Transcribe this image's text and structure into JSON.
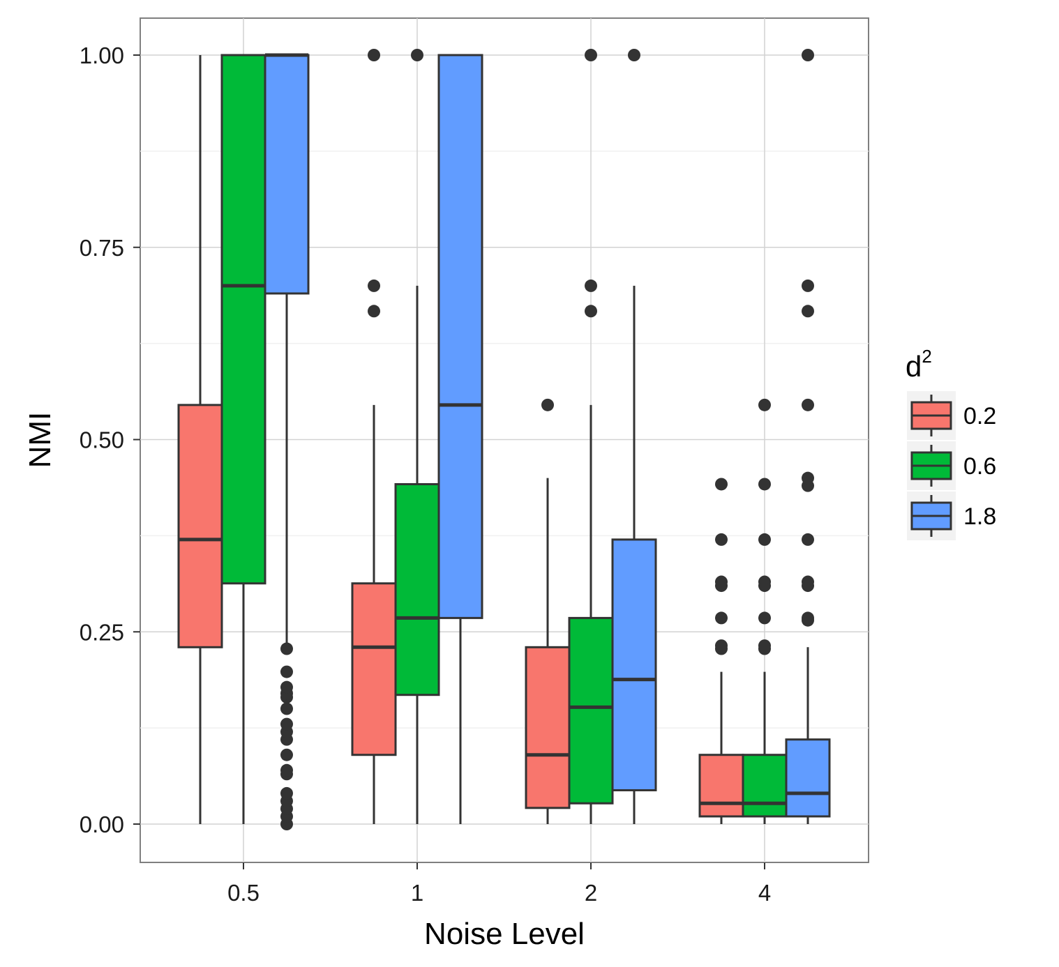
{
  "chart_data": {
    "type": "boxplot",
    "title": "",
    "xlabel": "Noise Level",
    "ylabel": "NMI",
    "ylim": [
      -0.04,
      1.05
    ],
    "y_ticks": [
      "0.00",
      "0.25",
      "0.50",
      "0.75",
      "1.00"
    ],
    "categories": [
      "0.5",
      "1",
      "2",
      "4"
    ],
    "legend": {
      "title": "d",
      "title_superscript": "2",
      "position": "right"
    },
    "series": [
      {
        "name": "0.2",
        "color": "#F8766D",
        "boxes": [
          {
            "category": "0.5",
            "whisker_low": 0.0,
            "q1": 0.23,
            "median": 0.37,
            "q3": 0.545,
            "whisker_high": 1.0,
            "outliers": []
          },
          {
            "category": "1",
            "whisker_low": 0.0,
            "q1": 0.09,
            "median": 0.23,
            "q3": 0.313,
            "whisker_high": 0.545,
            "outliers": [
              0.667,
              0.7,
              1.0
            ]
          },
          {
            "category": "2",
            "whisker_low": 0.0,
            "q1": 0.021,
            "median": 0.09,
            "q3": 0.23,
            "whisker_high": 0.45,
            "outliers": [
              0.545
            ]
          },
          {
            "category": "4",
            "whisker_low": 0.0,
            "q1": 0.01,
            "median": 0.027,
            "q3": 0.09,
            "whisker_high": 0.198,
            "outliers": [
              0.228,
              0.232,
              0.268,
              0.31,
              0.315,
              0.37,
              0.442
            ]
          }
        ]
      },
      {
        "name": "0.6",
        "color": "#00BA38",
        "boxes": [
          {
            "category": "0.5",
            "whisker_low": 0.0,
            "q1": 0.313,
            "median": 0.7,
            "q3": 1.0,
            "whisker_high": 1.0,
            "outliers": []
          },
          {
            "category": "1",
            "whisker_low": 0.0,
            "q1": 0.168,
            "median": 0.268,
            "q3": 0.442,
            "whisker_high": 0.7,
            "outliers": [
              1.0
            ]
          },
          {
            "category": "2",
            "whisker_low": 0.0,
            "q1": 0.027,
            "median": 0.152,
            "q3": 0.268,
            "whisker_high": 0.545,
            "outliers": [
              0.667,
              0.7,
              1.0
            ]
          },
          {
            "category": "4",
            "whisker_low": 0.0,
            "q1": 0.01,
            "median": 0.027,
            "q3": 0.09,
            "whisker_high": 0.198,
            "outliers": [
              0.228,
              0.232,
              0.268,
              0.31,
              0.315,
              0.37,
              0.442,
              0.545
            ]
          }
        ]
      },
      {
        "name": "1.8",
        "color": "#619CFF",
        "boxes": [
          {
            "category": "0.5",
            "whisker_low": 0.23,
            "q1": 0.69,
            "median": 1.0,
            "q3": 1.0,
            "whisker_high": 1.0,
            "outliers": [
              0.0,
              0.01,
              0.02,
              0.03,
              0.04,
              0.065,
              0.07,
              0.09,
              0.11,
              0.12,
              0.13,
              0.15,
              0.165,
              0.17,
              0.178,
              0.198,
              0.228
            ]
          },
          {
            "category": "1",
            "whisker_low": 0.0,
            "q1": 0.268,
            "median": 0.545,
            "q3": 1.0,
            "whisker_high": 1.0,
            "outliers": []
          },
          {
            "category": "2",
            "whisker_low": 0.0,
            "q1": 0.044,
            "median": 0.188,
            "q3": 0.37,
            "whisker_high": 0.7,
            "outliers": [
              1.0
            ]
          },
          {
            "category": "4",
            "whisker_low": 0.0,
            "q1": 0.01,
            "median": 0.04,
            "q3": 0.11,
            "whisker_high": 0.23,
            "outliers": [
              0.265,
              0.268,
              0.31,
              0.315,
              0.37,
              0.44,
              0.45,
              0.545,
              0.667,
              0.7,
              1.0
            ]
          }
        ]
      }
    ]
  }
}
